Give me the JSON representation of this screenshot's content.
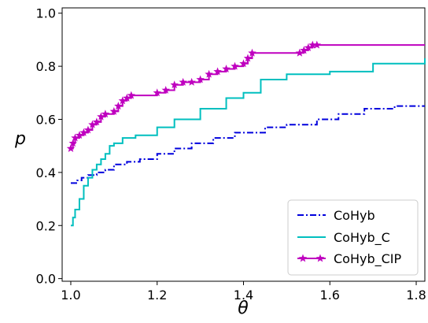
{
  "chart_data": {
    "type": "line",
    "title": "",
    "xlabel": "θ",
    "ylabel": "p",
    "xlim": [
      0.98,
      1.82
    ],
    "ylim": [
      -0.01,
      1.02
    ],
    "x_ticks": [
      "1.0",
      "1.2",
      "1.4",
      "1.6",
      "1.8"
    ],
    "y_ticks": [
      "0.0",
      "0.2",
      "0.4",
      "0.6",
      "0.8",
      "1.0"
    ],
    "grid": false,
    "legend_position": "lower-right",
    "series": [
      {
        "name": "CoHyb",
        "color": "#0000dd",
        "style": "dashdot",
        "marker": "none",
        "x": [
          1.0,
          1.015,
          1.025,
          1.04,
          1.06,
          1.08,
          1.1,
          1.13,
          1.16,
          1.2,
          1.24,
          1.28,
          1.33,
          1.38,
          1.45,
          1.5,
          1.57,
          1.62,
          1.68,
          1.75,
          1.82
        ],
        "y": [
          0.36,
          0.37,
          0.38,
          0.39,
          0.4,
          0.41,
          0.43,
          0.44,
          0.45,
          0.47,
          0.49,
          0.51,
          0.53,
          0.55,
          0.57,
          0.58,
          0.6,
          0.62,
          0.64,
          0.65,
          0.65
        ]
      },
      {
        "name": "CoHyb_C",
        "color": "#00bfbf",
        "style": "solid",
        "marker": "none",
        "x": [
          1.0,
          1.005,
          1.01,
          1.02,
          1.03,
          1.04,
          1.05,
          1.06,
          1.07,
          1.08,
          1.09,
          1.1,
          1.12,
          1.15,
          1.2,
          1.24,
          1.3,
          1.36,
          1.4,
          1.44,
          1.5,
          1.6,
          1.7,
          1.82
        ],
        "y": [
          0.2,
          0.23,
          0.26,
          0.3,
          0.35,
          0.38,
          0.41,
          0.43,
          0.45,
          0.47,
          0.5,
          0.51,
          0.53,
          0.54,
          0.57,
          0.6,
          0.64,
          0.68,
          0.7,
          0.75,
          0.77,
          0.78,
          0.81,
          0.83
        ]
      },
      {
        "name": "CoHyb_CIP",
        "color": "#bf00bf",
        "style": "solid",
        "marker": "star",
        "x": [
          1.0,
          1.005,
          1.01,
          1.02,
          1.03,
          1.04,
          1.05,
          1.06,
          1.07,
          1.08,
          1.1,
          1.11,
          1.12,
          1.13,
          1.14,
          1.2,
          1.22,
          1.24,
          1.26,
          1.28,
          1.3,
          1.32,
          1.34,
          1.36,
          1.38,
          1.4,
          1.41,
          1.42,
          1.53,
          1.54,
          1.55,
          1.56,
          1.57,
          1.82
        ],
        "y": [
          0.49,
          0.51,
          0.53,
          0.54,
          0.55,
          0.56,
          0.58,
          0.59,
          0.61,
          0.62,
          0.63,
          0.65,
          0.67,
          0.68,
          0.69,
          0.7,
          0.71,
          0.73,
          0.74,
          0.74,
          0.75,
          0.77,
          0.78,
          0.79,
          0.8,
          0.81,
          0.83,
          0.85,
          0.85,
          0.86,
          0.87,
          0.88,
          0.88,
          0.88
        ]
      }
    ]
  }
}
